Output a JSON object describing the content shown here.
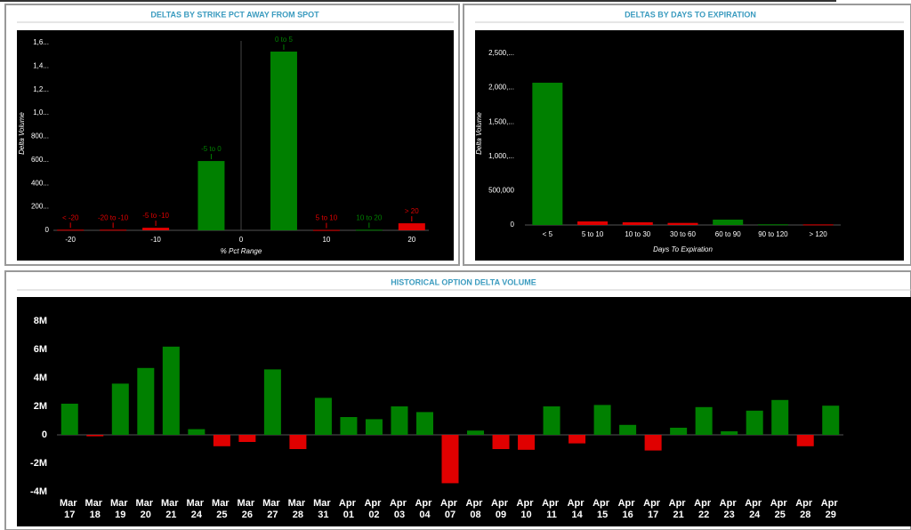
{
  "chart_data": [
    {
      "type": "bar",
      "title": "DELTAS BY STRIKE PCT AWAY FROM SPOT",
      "x_label": "% Pct Range",
      "y_label": "Delta Volume",
      "categories": [
        "< -20",
        "-20 to -10",
        "-5 to -10",
        "-5 to 0",
        "0 to 5",
        "5 to 10",
        "10 to 20",
        "> 20"
      ],
      "x": [
        -20,
        -15,
        -10,
        -3.5,
        5,
        10,
        15,
        20
      ],
      "values": [
        5,
        5,
        22,
        591,
        1524,
        3,
        5,
        60
      ],
      "colors": [
        "#e00000",
        "#e00000",
        "#e00000",
        "#008000",
        "#008000",
        "#e00000",
        "#008000",
        "#e00000"
      ],
      "xlim": [
        -22,
        22
      ],
      "xticks": [
        -20,
        -10,
        0,
        10,
        20
      ],
      "ylim": [
        0,
        1600
      ],
      "yticks": [
        0,
        {
          "value": 200,
          "label": "200..."
        },
        {
          "value": 400,
          "label": "400..."
        },
        {
          "value": 600,
          "label": "600..."
        },
        {
          "value": 800,
          "label": "800..."
        },
        {
          "value": 1000,
          "label": "1,0..."
        },
        {
          "value": 1200,
          "label": "1,2..."
        },
        {
          "value": 1400,
          "label": "1,4..."
        },
        {
          "value": 1600,
          "label": "1,6..."
        }
      ]
    },
    {
      "type": "bar",
      "title": "DELTAS BY DAYS TO EXPIRATION",
      "x_label": "Days To Expiration",
      "y_label": "Delta Volume",
      "categories": [
        "< 5",
        "5 to 10",
        "10 to 30",
        "30 to 60",
        "60 to 90",
        "90 to 120",
        "> 120"
      ],
      "values": [
        2072000,
        52000,
        40000,
        30000,
        78000,
        10000,
        8000
      ],
      "colors": [
        "#008000",
        "#e00000",
        "#e00000",
        "#e00000",
        "#008000",
        "#008000",
        "#e00000"
      ],
      "ylim": [
        0,
        2500000
      ],
      "yticks": [
        0,
        {
          "value": 500000,
          "label": "500,000"
        },
        {
          "value": 1000000,
          "label": "1,000,..."
        },
        {
          "value": 1500000,
          "label": "1,500,..."
        },
        {
          "value": 2000000,
          "label": "2,000,..."
        },
        {
          "value": 2500000,
          "label": "2,500,..."
        }
      ]
    },
    {
      "type": "bar",
      "title": "HISTORICAL OPTION DELTA VOLUME",
      "categories": [
        "Mar 17",
        "Mar 18",
        "Mar 19",
        "Mar 20",
        "Mar 21",
        "Mar 24",
        "Mar 25",
        "Mar 26",
        "Mar 27",
        "Mar 28",
        "Mar 31",
        "Apr 01",
        "Apr 02",
        "Apr 03",
        "Apr 04",
        "Apr 07",
        "Apr 08",
        "Apr 09",
        "Apr 10",
        "Apr 11",
        "Apr 14",
        "Apr 15",
        "Apr 16",
        "Apr 17",
        "Apr 21",
        "Apr 22",
        "Apr 23",
        "Apr 24",
        "Apr 25",
        "Apr 28",
        "Apr 29"
      ],
      "values": [
        2190000,
        -100000,
        3600000,
        4700000,
        6200000,
        400000,
        -800000,
        -500000,
        4600000,
        -1000000,
        2600000,
        1250000,
        1100000,
        2000000,
        1600000,
        -3400000,
        300000,
        -1000000,
        -1050000,
        2000000,
        -600000,
        2100000,
        700000,
        -1100000,
        500000,
        1950000,
        250000,
        1700000,
        2450000,
        -800000,
        2050000
      ],
      "color": "#008000",
      "negative_color": "#e00000",
      "ylim": [
        -4000000,
        8000000
      ],
      "yticks": [
        {
          "value": -4000000,
          "label": "-4M"
        },
        {
          "value": -2000000,
          "label": "-2M"
        },
        0,
        {
          "value": 2000000,
          "label": "2M"
        },
        {
          "value": 4000000,
          "label": "4M"
        },
        {
          "value": 6000000,
          "label": "6M"
        },
        {
          "value": 8000000,
          "label": "8M"
        }
      ]
    }
  ]
}
